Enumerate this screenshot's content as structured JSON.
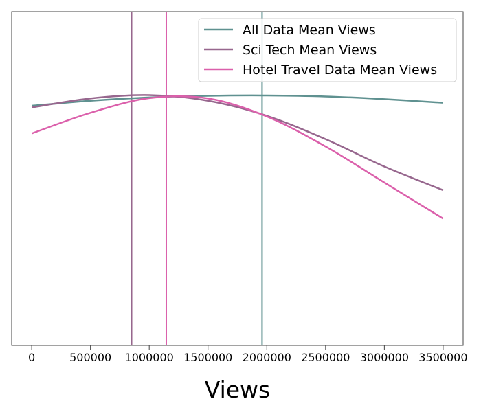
{
  "chart_data": {
    "type": "line",
    "title": "",
    "xlabel": "Views",
    "ylabel": "",
    "xlim": [
      -170000,
      3670000
    ],
    "ylim": [
      0,
      1
    ],
    "x_ticks": [
      0,
      500000,
      1000000,
      1500000,
      2000000,
      2500000,
      3000000,
      3500000
    ],
    "x_tick_labels": [
      "0",
      "500000",
      "1000000",
      "1500000",
      "2000000",
      "2500000",
      "3000000",
      "3500000"
    ],
    "grid": false,
    "legend_position": "top-right",
    "x": [
      0,
      500000,
      1000000,
      1500000,
      2000000,
      2500000,
      3000000,
      3500000
    ],
    "series": [
      {
        "name": "All Data Mean Views",
        "color": "#5f9190",
        "values": [
          0.718,
          0.733,
          0.743,
          0.748,
          0.749,
          0.746,
          0.738,
          0.727
        ],
        "mean_line_x": 1960000
      },
      {
        "name": "Sci Tech Mean Views",
        "color": "#97678e",
        "values": [
          0.713,
          0.74,
          0.75,
          0.733,
          0.688,
          0.618,
          0.536,
          0.465
        ],
        "mean_line_x": 850000
      },
      {
        "name": "Hotel Travel Data Mean Views",
        "color": "#db60ab",
        "values": [
          0.635,
          0.697,
          0.741,
          0.74,
          0.686,
          0.596,
          0.488,
          0.38
        ],
        "mean_line_x": 1145000
      }
    ]
  }
}
